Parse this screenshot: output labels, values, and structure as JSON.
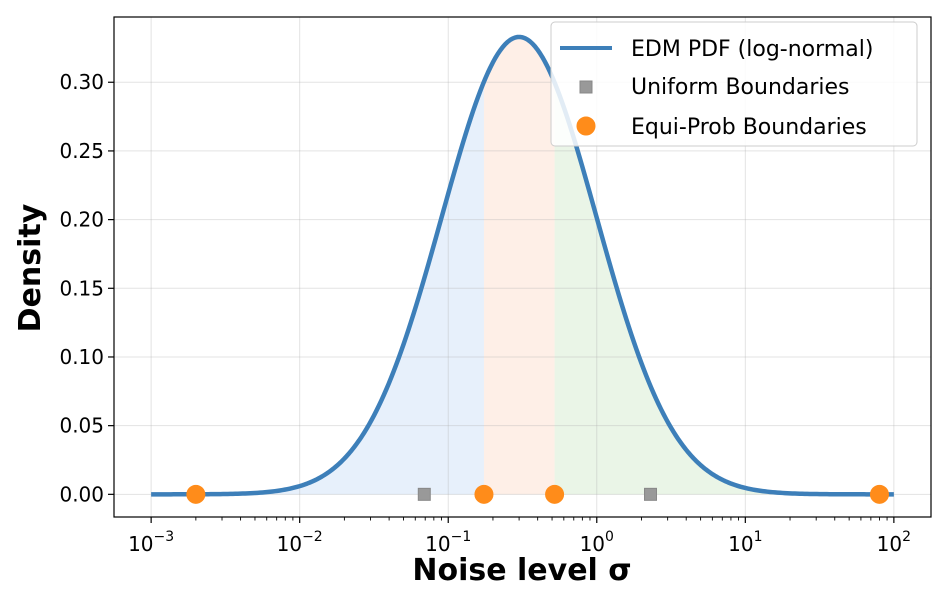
{
  "chart_data": {
    "type": "line",
    "xscale": "log",
    "xlim_log10": [
      -3.25,
      2.25
    ],
    "ylim": [
      -0.0165,
      0.3475
    ],
    "xlabel": "Noise level σ",
    "ylabel": "Density",
    "grid": true,
    "legend_position": "top-right",
    "x_ticks": [
      {
        "value": 0.001,
        "base": "10",
        "exp": "−3"
      },
      {
        "value": 0.01,
        "base": "10",
        "exp": "−2"
      },
      {
        "value": 0.1,
        "base": "10",
        "exp": "−1"
      },
      {
        "value": 1,
        "base": "10",
        "exp": "0"
      },
      {
        "value": 10,
        "base": "10",
        "exp": "1"
      },
      {
        "value": 100,
        "base": "10",
        "exp": "2"
      }
    ],
    "y_ticks": [
      "0.00",
      "0.05",
      "0.10",
      "0.15",
      "0.20",
      "0.25",
      "0.30"
    ],
    "y_tick_values": [
      0,
      0.05,
      0.1,
      0.15,
      0.2,
      0.25,
      0.3
    ],
    "pdf": {
      "name": "EDM PDF (log-normal)",
      "color": "#3d7fb9",
      "distribution": "log-normal on log10(σ)",
      "peak_sigma": 0.3,
      "peak_density": 0.333,
      "std_log10": 0.521,
      "x_range": [
        0.001,
        100
      ]
    },
    "shaded_regions": [
      {
        "from": 0.002,
        "to": 0.174,
        "color": "#cfe2f7"
      },
      {
        "from": 0.174,
        "to": 0.52,
        "color": "#fde0cf"
      },
      {
        "from": 0.52,
        "to": 80,
        "color": "#d6ebcf"
      }
    ],
    "series": [
      {
        "name": "Uniform Boundaries",
        "marker": "square",
        "color": "#999999",
        "x": [
          0.069,
          2.3
        ],
        "y": [
          0,
          0
        ]
      },
      {
        "name": "Equi-Prob Boundaries",
        "marker": "circle",
        "color": "#ff8c1a",
        "x": [
          0.002,
          0.174,
          0.52,
          80
        ],
        "y": [
          0,
          0,
          0,
          0
        ]
      }
    ]
  },
  "legend": {
    "items": [
      {
        "label": "EDM PDF (log-normal)"
      },
      {
        "label": "Uniform Boundaries"
      },
      {
        "label": "Equi-Prob Boundaries"
      }
    ]
  }
}
